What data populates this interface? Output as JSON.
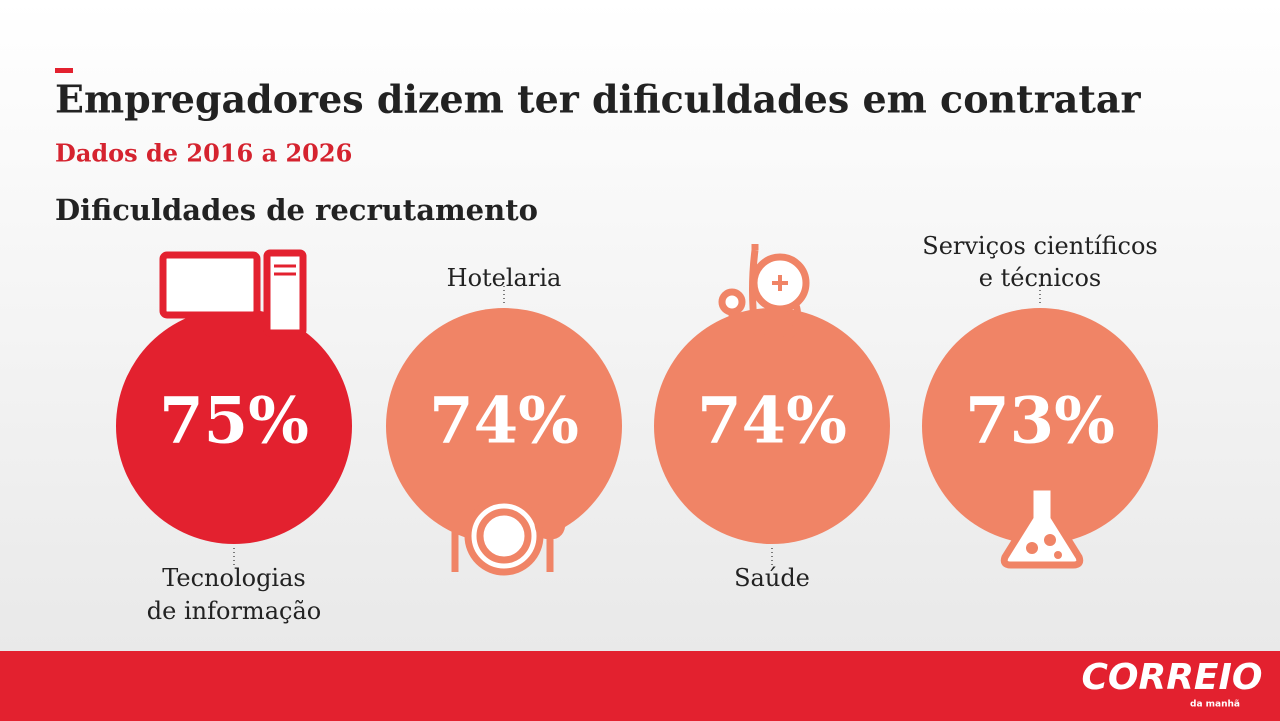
{
  "header": {
    "title": "Empregadores dizem ter dificuldades em contratar",
    "subtitle": "Dados de 2016 a 2026"
  },
  "section_title": "Dificuldades de recrutamento",
  "items": [
    {
      "label": [
        "Tecnologias",
        "de informação"
      ],
      "value": "75%"
    },
    {
      "label": [
        "Hotelaria"
      ],
      "value": "74%"
    },
    {
      "label": [
        "Saúde"
      ],
      "value": "74%"
    },
    {
      "label": [
        "Serviços científicos",
        "e técnicos"
      ],
      "value": "73%"
    }
  ],
  "footer": {
    "logo": "CORREIO",
    "logo_sub": "da manhã"
  }
}
